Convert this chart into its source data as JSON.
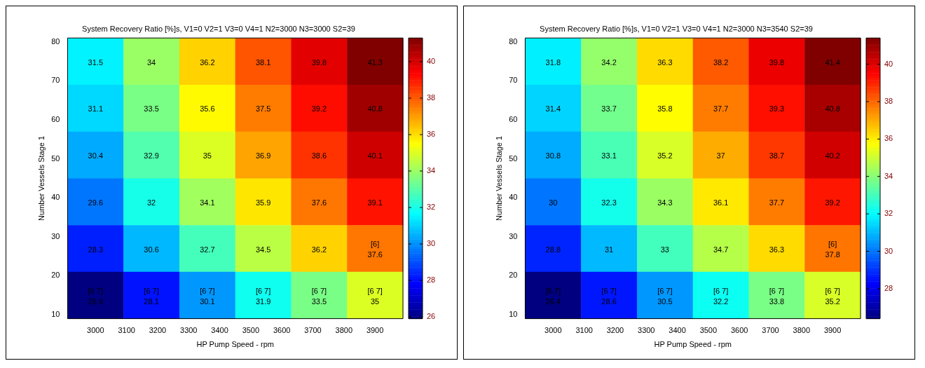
{
  "chart_data": [
    {
      "type": "heatmap",
      "title": "System Recovery Ratio [%]s, V1=0 V2=1 V3=0 V4=1 N2=3000 N3=3000 S2=39",
      "xlabel": "HP Pump Speed - rpm",
      "ylabel": "Number Vessels Stage 1",
      "x": [
        3000,
        3180,
        3360,
        3540,
        3720,
        3900
      ],
      "y": [
        75,
        63,
        51,
        39,
        27,
        15
      ],
      "xlim": [
        2910,
        3990
      ],
      "xticks": [
        3000,
        3100,
        3200,
        3300,
        3400,
        3500,
        3600,
        3700,
        3800,
        3900
      ],
      "ylim": [
        9,
        81
      ],
      "yticks": [
        10,
        20,
        30,
        40,
        50,
        60,
        70,
        80
      ],
      "clim": [
        25.9,
        41.3
      ],
      "cticks": [
        26,
        28,
        30,
        32,
        34,
        36,
        38,
        40
      ],
      "cells": [
        [
          31.5,
          34,
          36.2,
          38.1,
          39.8,
          41.3
        ],
        [
          31.1,
          33.5,
          35.6,
          37.5,
          39.2,
          40.8
        ],
        [
          30.4,
          32.9,
          35,
          36.9,
          38.6,
          40.1
        ],
        [
          29.6,
          32,
          34.1,
          35.9,
          37.6,
          39.1
        ],
        [
          28.3,
          30.6,
          32.7,
          34.5,
          36.2,
          37.6
        ],
        [
          25.9,
          28.1,
          30.1,
          31.9,
          33.5,
          35
        ]
      ],
      "cell_labels": [
        [
          "31.5",
          "34",
          "36.2",
          "38.1",
          "39.8",
          "41.3"
        ],
        [
          "31.1",
          "33.5",
          "35.6",
          "37.5",
          "39.2",
          "40.8"
        ],
        [
          "30.4",
          "32.9",
          "35",
          "36.9",
          "38.6",
          "40.1"
        ],
        [
          "29.6",
          "32",
          "34.1",
          "35.9",
          "37.6",
          "39.1"
        ],
        [
          "28.3",
          "30.6",
          "32.7",
          "34.5",
          "36.2",
          "[6]\n37.6"
        ],
        [
          "[6 7]\n25.9",
          "[6 7]\n28.1",
          "[6 7]\n30.1",
          "[6 7]\n31.9",
          "[6 7]\n33.5",
          "[6 7]\n35"
        ]
      ]
    },
    {
      "type": "heatmap",
      "title": "System Recovery Ratio [%]s, V1=0 V2=1 V3=0 V4=1 N2=3000 N3=3540 S2=39",
      "xlabel": "HP Pump Speed - rpm",
      "ylabel": "Number Vessels Stage 1",
      "x": [
        3000,
        3180,
        3360,
        3540,
        3720,
        3900
      ],
      "y": [
        75,
        63,
        51,
        39,
        27,
        15
      ],
      "xlim": [
        2910,
        3990
      ],
      "xticks": [
        3000,
        3100,
        3200,
        3300,
        3400,
        3500,
        3600,
        3700,
        3800,
        3900
      ],
      "ylim": [
        9,
        81
      ],
      "yticks": [
        10,
        20,
        30,
        40,
        50,
        60,
        70,
        80
      ],
      "clim": [
        26.4,
        41.4
      ],
      "cticks": [
        28,
        30,
        32,
        34,
        36,
        38,
        40
      ],
      "cells": [
        [
          31.8,
          34.2,
          36.3,
          38.2,
          39.8,
          41.4
        ],
        [
          31.4,
          33.7,
          35.8,
          37.7,
          39.3,
          40.8
        ],
        [
          30.8,
          33.1,
          35.2,
          37,
          38.7,
          40.2
        ],
        [
          30,
          32.3,
          34.3,
          36.1,
          37.7,
          39.2
        ],
        [
          28.8,
          31,
          33,
          34.7,
          36.3,
          37.8
        ],
        [
          26.4,
          28.6,
          30.5,
          32.2,
          33.8,
          35.2
        ]
      ],
      "cell_labels": [
        [
          "31.8",
          "34.2",
          "36.3",
          "38.2",
          "39.8",
          "41.4"
        ],
        [
          "31.4",
          "33.7",
          "35.8",
          "37.7",
          "39.3",
          "40.8"
        ],
        [
          "30.8",
          "33.1",
          "35.2",
          "37",
          "38.7",
          "40.2"
        ],
        [
          "30",
          "32.3",
          "34.3",
          "36.1",
          "37.7",
          "39.2"
        ],
        [
          "28.8",
          "31",
          "33",
          "34.7",
          "36.3",
          "[6]\n37.8"
        ],
        [
          "[6 7]\n26.4",
          "[6 7]\n28.6",
          "[6 7]\n30.5",
          "[6 7]\n32.2",
          "[6 7]\n33.8",
          "[6 7]\n35.2"
        ]
      ]
    }
  ]
}
